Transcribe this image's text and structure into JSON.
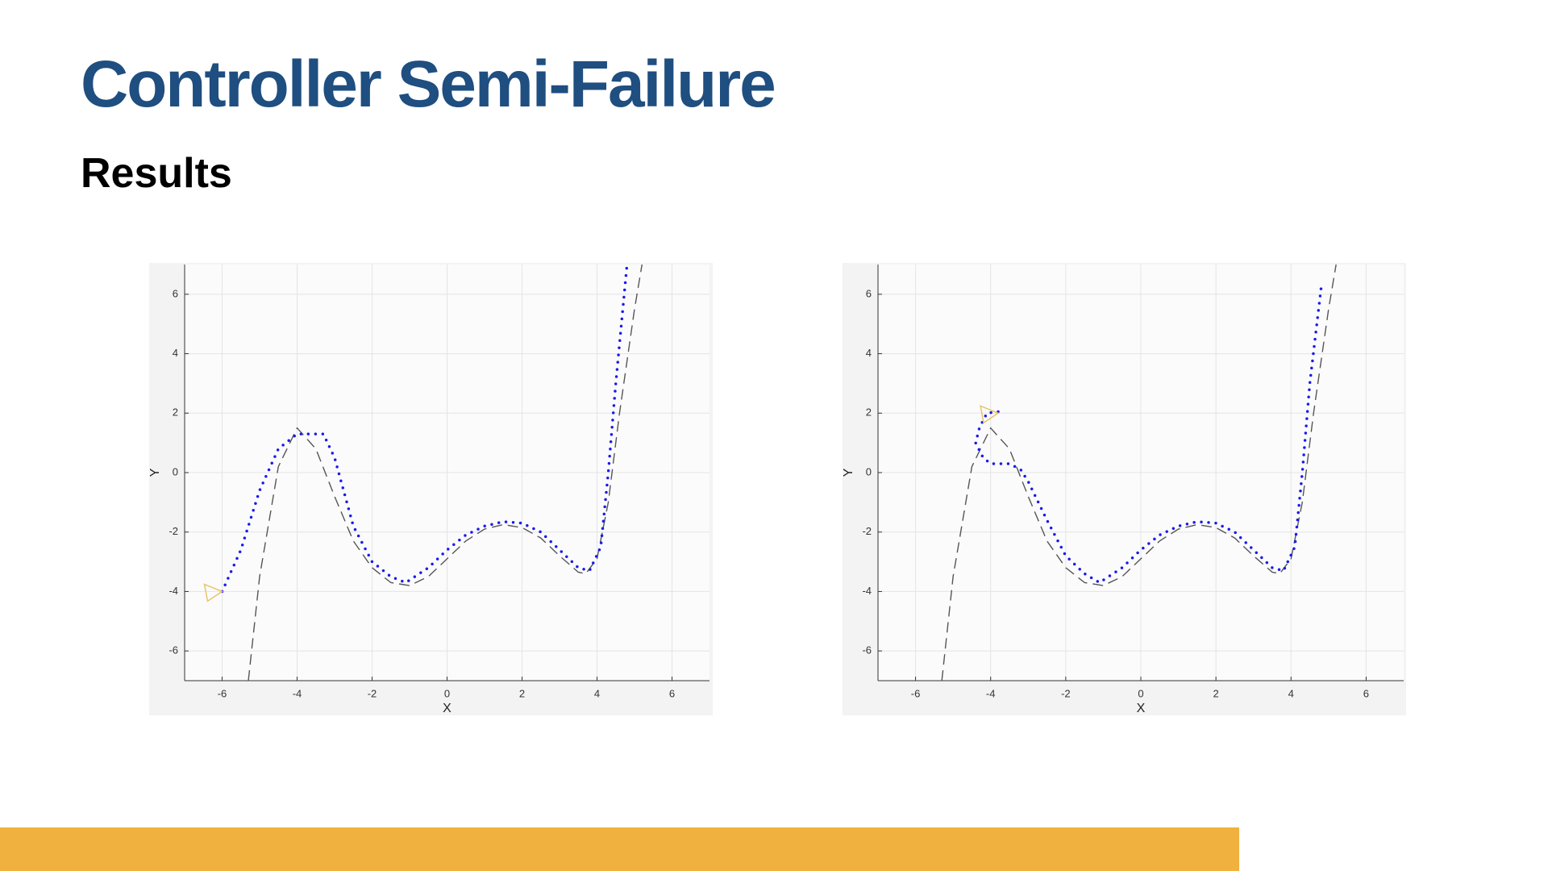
{
  "title": "Controller Semi-Failure",
  "subtitle": "Results",
  "chart_data": [
    {
      "type": "line",
      "xlabel": "X",
      "ylabel": "Y",
      "xlim": [
        -7,
        7
      ],
      "ylim": [
        -7,
        7
      ],
      "xticks": [
        -6,
        -4,
        -2,
        0,
        2,
        4,
        6
      ],
      "yticks": [
        -6,
        -4,
        -2,
        0,
        2,
        4,
        6
      ],
      "grid": true,
      "series": [
        {
          "style": "dashed",
          "color": "#555555",
          "x": [
            -5.3,
            -5,
            -4.5,
            -4,
            -3.5,
            -3,
            -2.5,
            -2,
            -1.5,
            -1,
            -0.5,
            0,
            0.5,
            1,
            1.5,
            2,
            2.5,
            3,
            3.5,
            3.7,
            4,
            4.3,
            4.6,
            5,
            5.2
          ],
          "values": [
            -7,
            -3.5,
            0.2,
            1.5,
            0.8,
            -0.8,
            -2.3,
            -3.2,
            -3.7,
            -3.8,
            -3.5,
            -2.9,
            -2.3,
            -1.9,
            -1.75,
            -1.85,
            -2.2,
            -2.8,
            -3.35,
            -3.4,
            -2.9,
            -1,
            2,
            5.5,
            7
          ]
        },
        {
          "style": "dotted",
          "color": "#1a1aee",
          "x": [
            -6,
            -5.5,
            -5,
            -4.5,
            -4,
            -3.3,
            -3,
            -2.5,
            -2,
            -1.5,
            -1.1,
            -0.5,
            0,
            0.5,
            1,
            1.5,
            2,
            2.5,
            3,
            3.5,
            3.8,
            4.1,
            4.3,
            4.5,
            4.8
          ],
          "values": [
            -4,
            -2.6,
            -0.6,
            0.8,
            1.3,
            1.3,
            0.5,
            -1.8,
            -3,
            -3.5,
            -3.7,
            -3.2,
            -2.6,
            -2.1,
            -1.8,
            -1.65,
            -1.7,
            -2,
            -2.6,
            -3.2,
            -3.3,
            -2.5,
            0,
            3,
            7
          ]
        }
      ],
      "marker": {
        "x": -6,
        "y": -4,
        "color": "#e8c56a"
      }
    },
    {
      "type": "line",
      "xlabel": "X",
      "ylabel": "Y",
      "xlim": [
        -7,
        7
      ],
      "ylim": [
        -7,
        7
      ],
      "xticks": [
        -6,
        -4,
        -2,
        0,
        2,
        4,
        6
      ],
      "yticks": [
        -6,
        -4,
        -2,
        0,
        2,
        4,
        6
      ],
      "grid": true,
      "series": [
        {
          "style": "dashed",
          "color": "#555555",
          "x": [
            -5.3,
            -5,
            -4.5,
            -4,
            -3.5,
            -3,
            -2.5,
            -2,
            -1.5,
            -1,
            -0.5,
            0,
            0.5,
            1,
            1.5,
            2,
            2.5,
            3,
            3.5,
            3.7,
            4,
            4.3,
            4.6,
            5,
            5.2
          ],
          "values": [
            -7,
            -3.5,
            0.2,
            1.5,
            0.8,
            -0.8,
            -2.3,
            -3.2,
            -3.7,
            -3.8,
            -3.5,
            -2.9,
            -2.3,
            -1.9,
            -1.75,
            -1.85,
            -2.2,
            -2.8,
            -3.35,
            -3.4,
            -2.9,
            -1,
            2,
            5.5,
            7
          ]
        },
        {
          "style": "dotted",
          "color": "#1a1aee",
          "x": [
            -3.8,
            -4.1,
            -4.3,
            -4.4,
            -4.2,
            -4,
            -3.5,
            -3.2,
            -3,
            -2.5,
            -2,
            -1.5,
            -1.1,
            -0.5,
            0,
            0.5,
            1,
            1.5,
            2,
            2.5,
            3,
            3.5,
            3.8,
            4.1,
            4.3,
            4.5,
            4.8
          ],
          "values": [
            2.05,
            2,
            1.5,
            1,
            0.5,
            0.3,
            0.3,
            0.1,
            -0.3,
            -1.6,
            -2.8,
            -3.4,
            -3.7,
            -3.2,
            -2.6,
            -2.1,
            -1.8,
            -1.65,
            -1.7,
            -2,
            -2.6,
            -3.2,
            -3.3,
            -2.5,
            0,
            3,
            6.2
          ]
        }
      ],
      "marker": {
        "x": -3.8,
        "y": 2,
        "color": "#e8c56a"
      }
    }
  ]
}
